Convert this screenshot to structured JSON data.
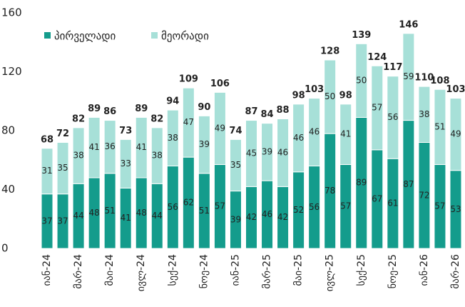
{
  "chart_data": {
    "type": "stacked_bar",
    "categories": [
      "იან-24",
      null,
      "მარ-24",
      null,
      "მაი-24",
      null,
      "ივლ-24",
      null,
      "სექ-24",
      null,
      "ნოე-24",
      null,
      "იან-25",
      null,
      "მარ-25",
      null,
      "მაი-25",
      null,
      "ივლ-25",
      null,
      "სექ-25",
      null,
      "ნოე-25",
      null,
      "იან-26",
      null,
      "მარ-26"
    ],
    "series": [
      {
        "name": "პირველადი",
        "color": "#149c8c",
        "values": [
          37,
          37,
          44,
          48,
          51,
          41,
          48,
          44,
          56,
          62,
          51,
          57,
          39,
          42,
          46,
          42,
          52,
          56,
          78,
          57,
          89,
          67,
          61,
          87,
          72,
          57,
          53
        ]
      },
      {
        "name": "მეორადი",
        "color": "#a7e0d8",
        "values": [
          31,
          35,
          38,
          41,
          36,
          33,
          41,
          38,
          38,
          47,
          39,
          49,
          35,
          45,
          39,
          46,
          46,
          46,
          50,
          41,
          50,
          57,
          56,
          59,
          38,
          51,
          49
        ]
      }
    ],
    "totals": [
      68,
      72,
      82,
      89,
      86,
      73,
      89,
      82,
      94,
      109,
      90,
      106,
      74,
      87,
      84,
      88,
      98,
      103,
      128,
      98,
      139,
      124,
      117,
      146,
      110,
      108,
      103
    ],
    "ylim": [
      0,
      160
    ],
    "yticks": [
      0,
      40,
      80,
      120,
      160
    ],
    "grid": false,
    "legend": "top-left"
  }
}
